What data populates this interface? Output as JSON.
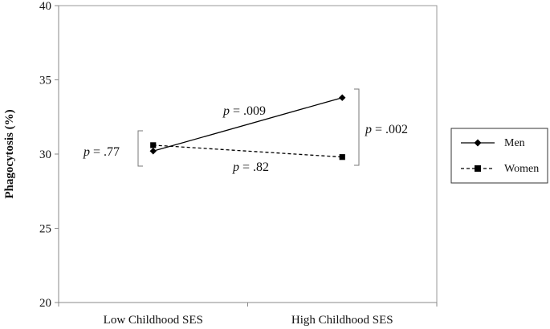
{
  "chart_data": {
    "type": "line",
    "categories": [
      "Low Childhood SES",
      "High Childhood SES"
    ],
    "ylabel": "Phagocytosis (%)",
    "xlabel": "",
    "ylim": [
      20,
      40
    ],
    "yticks": [
      "20",
      "25",
      "30",
      "35",
      "40"
    ],
    "grid": false,
    "legend_position": "right",
    "series": [
      {
        "name": "Men",
        "values": [
          30.2,
          33.8
        ],
        "marker": "diamond",
        "line_style": "solid",
        "color": "#000000"
      },
      {
        "name": "Women",
        "values": [
          30.6,
          29.8
        ],
        "marker": "square",
        "line_style": "dashed",
        "color": "#000000"
      }
    ],
    "annotations": {
      "men_slope": {
        "prefix": "p",
        "text": " = .009"
      },
      "women_slope": {
        "prefix": "p",
        "text": " = .82"
      },
      "low_ses_diff": {
        "prefix": "p",
        "text": " = .77"
      },
      "high_ses_diff": {
        "prefix": "p",
        "text": " = .002"
      }
    }
  }
}
